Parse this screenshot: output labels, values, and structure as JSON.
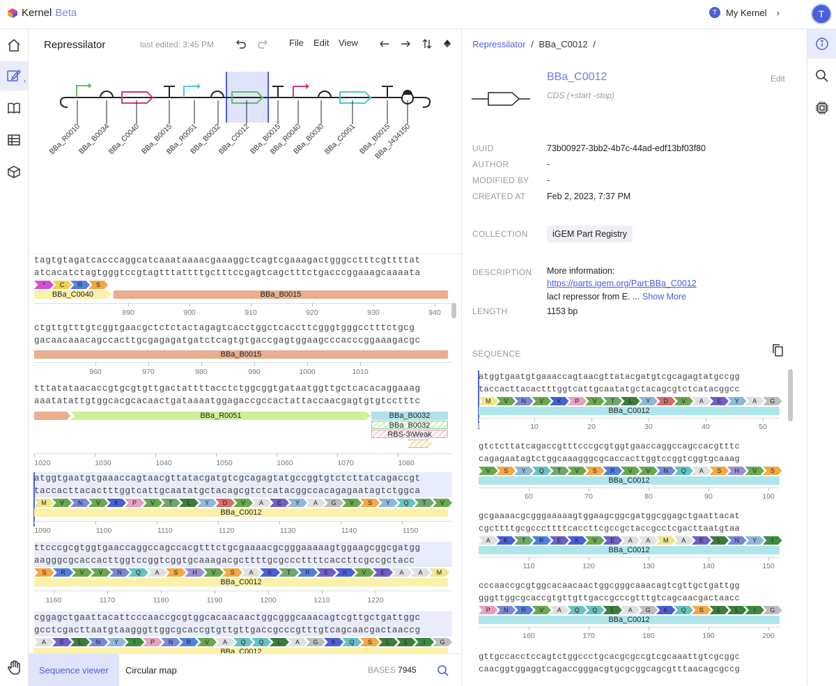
{
  "app": {
    "brand": "Kernel",
    "badge": "Beta",
    "workspace": "My Kernel",
    "avatar_letter": "T",
    "workspace_letter": "T",
    "accent": "#4a5fd8"
  },
  "editor": {
    "title": "Repressilator",
    "last_edited": "last edited: 3:45 PM",
    "menus": [
      "File",
      "Edit",
      "View"
    ]
  },
  "diagram": {
    "parts": [
      "BBa_R0010",
      "BBa_B0034",
      "BBa_C0040",
      "BBa_B0015",
      "BBa_R0051",
      "BBa_B0032",
      "BBa_C0012",
      "BBa_B0015",
      "BBa_R0040",
      "BBa_B0030",
      "BBa_C0051",
      "BBa_B0015",
      "BBa_J434150"
    ],
    "selected": "BBa_C0012"
  },
  "sequence": {
    "blocks": [
      {
        "top": "tagtgtagatcacccaggcatcaaataaaacgaaaggctcagtcgaaagactgggcctttcgttttat",
        "bottom": "atcacatctagtgggtccgtagtttattttgctttccgagtcagctttctgacccggaaagcaaaata",
        "ticks": [
          "890",
          "900",
          "910",
          "920",
          "930",
          "940",
          "950"
        ]
      },
      {
        "top": "ctgttgtttgtcggtgaacgctctctactagagtcacctggctcaccttcgggtgggcctttctgcg",
        "bottom": "gacaacaaacagccacttgcgagagatgatctcagtgtgaccgagtggaagcccacccggaaagacgc",
        "ticks": [
          "960",
          "970",
          "980",
          "990",
          "1000",
          "1010"
        ]
      },
      {
        "top": "tttatataacaccgtgcgtgttgactattttacctctggcggtgataatggttgctcacacaggaaag",
        "bottom": "aaatatattgtggcacgcacaactgataaaatggagaccgccactattaccaacgagtgtgtcctttc",
        "ticks": [
          "1020",
          "1030",
          "1040",
          "1050",
          "1060",
          "1070",
          "1080"
        ]
      },
      {
        "top": "atggtgaatgtgaaaccagtaacgttatacgatgtcgcagagtatgccggtgtctcttatcagaccgt",
        "bottom": "taccacttacactttggtcattgcaatatgctacagcgtctcatacggccacagagaatagtctggca",
        "ticks": [
          "1090",
          "1100",
          "1110",
          "1120",
          "1130",
          "1140",
          "1150"
        ]
      },
      {
        "top": "ttcccgcgtggtgaaccaggccagccacgtttctgcgaaaacgcgggaaaaagtggaagcggcgatgg",
        "bottom": "aagggcgcaccacttggtccggtcggtgcaaagacgcttttgcgcccttttcaccttcgccgctacc",
        "ticks": [
          "1160",
          "1170",
          "1180",
          "1190",
          "1200",
          "1210",
          "1220"
        ]
      },
      {
        "top": "cggagctgaattacattcccaaccgcgtggcacaacaactggcgggcaaacagtcgttgctgattggc",
        "bottom": "gcctcgacttaatgtaagggttggcgcaccgtgttgttgaccgcccgtttgtcagcaacgactaaccg",
        "ticks": []
      }
    ],
    "features": {
      "c0040": "BBa_C0040",
      "b0015": "BBa_B0015",
      "r0051": "BBa_R0051",
      "b0032": "BBa_B0032",
      "rbs": "RBS-3\\Weak",
      "c0012": "BBa_C0012"
    },
    "aa_row0": [
      "*",
      "C",
      "R",
      "S"
    ],
    "aa_row3": [
      "M",
      "V",
      "N",
      "V",
      "K",
      "P",
      "V",
      "T",
      "L",
      "Y",
      "D",
      "V",
      "A",
      "E",
      "Y",
      "A",
      "G",
      "V",
      "S",
      "Y",
      "Q",
      "T",
      "V"
    ],
    "aa_row4": [
      "S",
      "R",
      "V",
      "V",
      "N",
      "Q",
      "A",
      "S",
      "H",
      "V",
      "S",
      "A",
      "K",
      "T",
      "R",
      "E",
      "K",
      "V",
      "E",
      "A",
      "A",
      "M"
    ],
    "aa_row5": [
      "A",
      "E",
      "L",
      "N",
      "Y",
      "I",
      "P",
      "N",
      "R",
      "V",
      "A",
      "Q",
      "Q",
      "L",
      "A",
      "G",
      "K",
      "Q",
      "S",
      "L",
      "L",
      "I",
      "G"
    ]
  },
  "tabs": {
    "sequence_viewer": "Sequence viewer",
    "circular_map": "Circular map",
    "bases_label": "BASES",
    "bases_value": "7945"
  },
  "info": {
    "breadcrumb_root": "Repressilator",
    "breadcrumb_sep": "/",
    "breadcrumb_part": "BBa_C0012",
    "part_name": "BBa_C0012",
    "part_type": "CDS (+start -stop)",
    "edit": "Edit",
    "uuid_label": "UUID",
    "uuid": "73b00927-3bb2-4b7c-44ad-edf13bf03f80",
    "author_label": "AUTHOR",
    "author": "-",
    "modified_label": "MODIFIED BY",
    "modified": "-",
    "created_label": "CREATED AT",
    "created": "Feb 2, 2023, 7:37 PM",
    "collection_label": "COLLECTION",
    "collection": "iGEM Part Registry",
    "description_label": "DESCRIPTION",
    "desc_line1": "More information:",
    "desc_link": "https://parts.igem.org/Part:BBa_C0012",
    "desc_line3": "lacI repressor from E. ...",
    "show_more": "Show More",
    "length_label": "LENGTH",
    "length": "1153 bp",
    "sequence_label": "SEQUENCE",
    "mini": [
      {
        "top": "atggtgaatgtgaaaccagtaacgttatacgatgtcgcagagtatgccgg",
        "bottom": "taccacttacactttggtcattgcaatatgctacagcgtctcatacggcc",
        "aa": [
          "M",
          "V",
          "N",
          "V",
          "K",
          "P",
          "V",
          "T",
          "L",
          "Y",
          "D",
          "V",
          "A",
          "E",
          "Y",
          "A",
          "G"
        ],
        "ticks": [
          "1",
          "10",
          "20",
          "30",
          "40",
          "50"
        ]
      },
      {
        "top": "gtctcttatcagaccgtttcccgcgtggtgaaccaggccagccacgtttc",
        "bottom": "cagagaatagtctggcaaagggcgcaccacttggtccggtcggtgcaaag",
        "aa": [
          "V",
          "S",
          "Y",
          "Q",
          "T",
          "V",
          "S",
          "R",
          "V",
          "V",
          "N",
          "Q",
          "A",
          "S",
          "H",
          "V",
          "S"
        ],
        "ticks": [
          "60",
          "70",
          "80",
          "90",
          "100"
        ]
      },
      {
        "top": "gcgaaaacgcgggaaaaagtggaagcggcgatggcggagctgaattacat",
        "bottom": "cgcttttgcgcccttttcaccttcgccgctaccgcctcgacttaatgtaa",
        "aa": [
          "A",
          "K",
          "T",
          "R",
          "E",
          "K",
          "V",
          "E",
          "A",
          "A",
          "M",
          "A",
          "E",
          "L",
          "N",
          "Y",
          "I"
        ],
        "ticks": [
          "110",
          "120",
          "130",
          "140",
          "150"
        ]
      },
      {
        "top": "cccaaccgcgtggcacaacaactggcgggcaaacagtcgttgctgattgg",
        "bottom": "gggttggcgcaccgtgttgttgaccgcccgtttgtcagcaacgactaacc",
        "aa": [
          "P",
          "N",
          "R",
          "V",
          "A",
          "Q",
          "Q",
          "L",
          "A",
          "G",
          "K",
          "Q",
          "S",
          "L",
          "L",
          "I",
          "G"
        ],
        "ticks": [
          "160",
          "170",
          "180",
          "190",
          "200"
        ]
      },
      {
        "top": "gttgccacctccagtctggccctgcacgcgccgtcgcaaattgtcgcggc",
        "bottom": "caacggtggaggtcagaccgggacgtgcgcggcagcgtttaacagcgccg",
        "aa": [],
        "ticks": []
      }
    ]
  },
  "aa_colors": {
    "M": "#f0e68c",
    "V": "#6aa84f",
    "N": "#7a86d8",
    "K": "#4a5fd8",
    "P": "#e8a0bf",
    "T": "#6fa86c",
    "L": "#3d7c3d",
    "Y": "#8fb8d8",
    "D": "#d96b6b",
    "A": "#e0e0e0",
    "E": "#7060c8",
    "G": "#bdbdbd",
    "S": "#f4a742",
    "Q": "#66c2c2",
    "R": "#5080e0",
    "H": "#9a90d8",
    "I": "#3d8b3d",
    "C": "#f0d050",
    "*": "#d050d0"
  }
}
